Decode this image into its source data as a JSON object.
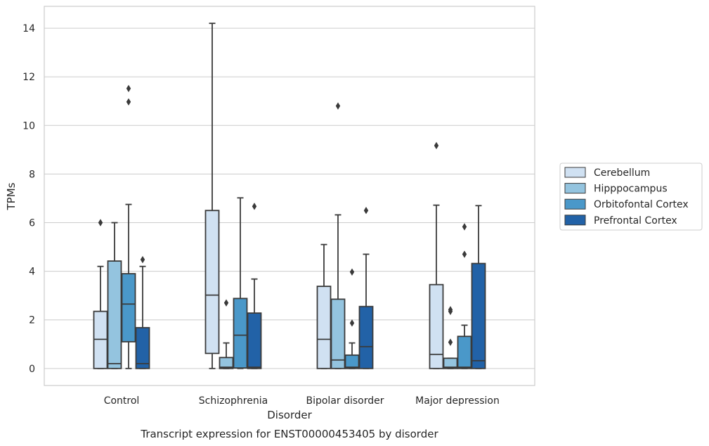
{
  "chart_data": {
    "type": "box",
    "title": "",
    "caption": "Transcript expression for ENST00000453405 by disorder",
    "xlabel": "Disorder",
    "ylabel": "TPMs",
    "ylim": [
      -0.7,
      14.9
    ],
    "yticks": [
      0,
      2,
      4,
      6,
      8,
      10,
      12,
      14
    ],
    "grid": "horizontal",
    "legend_position": "right",
    "categories": [
      "Control",
      "Schizophrenia",
      "Bipolar disorder",
      "Major depression"
    ],
    "series": [
      {
        "name": "Cerebellum",
        "color": "#d0e1f2",
        "boxes": [
          {
            "whislo": 0,
            "q1": 0,
            "med": 1.2,
            "q3": 2.35,
            "whishi": 4.2,
            "fliers": [
              6.0
            ]
          },
          {
            "whislo": 0,
            "q1": 0.62,
            "med": 3.02,
            "q3": 6.5,
            "whishi": 14.2,
            "fliers": []
          },
          {
            "whislo": 0,
            "q1": 0,
            "med": 1.2,
            "q3": 3.38,
            "whishi": 5.1,
            "fliers": []
          },
          {
            "whislo": 0,
            "q1": 0,
            "med": 0.58,
            "q3": 3.45,
            "whishi": 6.72,
            "fliers": [
              9.17
            ]
          }
        ]
      },
      {
        "name": "Hipppocampus",
        "color": "#94c4df",
        "boxes": [
          {
            "whislo": 0,
            "q1": 0,
            "med": 0.2,
            "q3": 4.42,
            "whishi": 6.0,
            "fliers": []
          },
          {
            "whislo": 0,
            "q1": 0,
            "med": 0.05,
            "q3": 0.45,
            "whishi": 1.05,
            "fliers": [
              2.7
            ]
          },
          {
            "whislo": 0,
            "q1": 0,
            "med": 0.35,
            "q3": 2.85,
            "whishi": 6.32,
            "fliers": [
              10.8
            ]
          },
          {
            "whislo": 0,
            "q1": 0,
            "med": 0.05,
            "q3": 0.42,
            "whishi": 0.42,
            "fliers": [
              1.08,
              2.35,
              2.42
            ]
          }
        ]
      },
      {
        "name": "Orbitofontal Cortex",
        "color": "#4a98c9",
        "boxes": [
          {
            "whislo": 0,
            "q1": 1.1,
            "med": 2.65,
            "q3": 3.9,
            "whishi": 6.75,
            "fliers": [
              10.97,
              11.52
            ]
          },
          {
            "whislo": 0,
            "q1": 0.02,
            "med": 1.37,
            "q3": 2.88,
            "whishi": 7.02,
            "fliers": []
          },
          {
            "whislo": 0,
            "q1": 0,
            "med": 0.05,
            "q3": 0.55,
            "whishi": 1.05,
            "fliers": [
              1.87,
              3.97
            ]
          },
          {
            "whislo": 0,
            "q1": 0,
            "med": 0.05,
            "q3": 1.32,
            "whishi": 1.78,
            "fliers": [
              4.7,
              5.83
            ]
          }
        ]
      },
      {
        "name": "Prefrontal Cortex",
        "color": "#2262a7",
        "boxes": [
          {
            "whislo": 0,
            "q1": 0,
            "med": 0.2,
            "q3": 1.68,
            "whishi": 4.2,
            "fliers": [
              4.48
            ]
          },
          {
            "whislo": 0,
            "q1": 0,
            "med": 0.05,
            "q3": 2.28,
            "whishi": 3.68,
            "fliers": [
              6.67
            ]
          },
          {
            "whislo": 0,
            "q1": 0,
            "med": 0.9,
            "q3": 2.55,
            "whishi": 4.7,
            "fliers": [
              6.5
            ]
          },
          {
            "whislo": 0,
            "q1": 0,
            "med": 0.32,
            "q3": 4.32,
            "whishi": 6.7,
            "fliers": []
          }
        ]
      }
    ]
  }
}
